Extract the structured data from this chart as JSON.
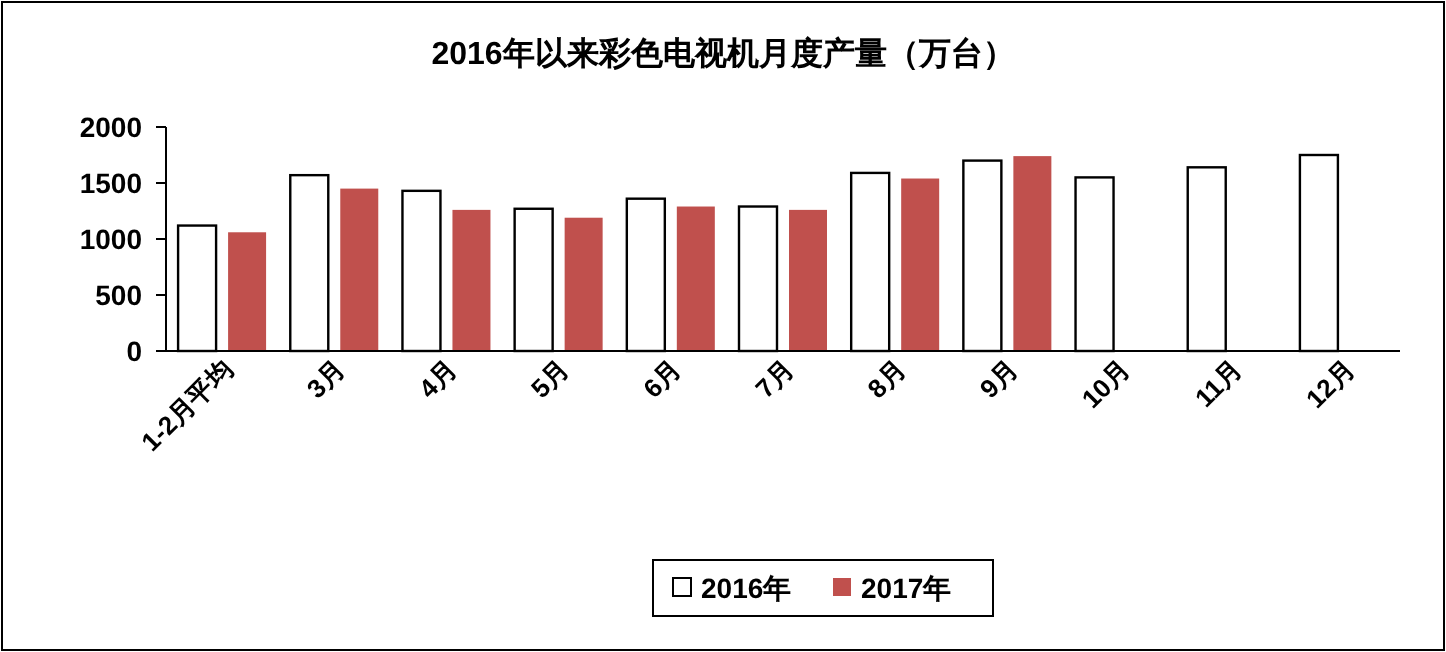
{
  "chart_data": {
    "type": "bar",
    "title": "2016年以来彩色电视机月度产量（万台）",
    "categories": [
      "1-2月平均",
      "3月",
      "4月",
      "5月",
      "6月",
      "7月",
      "8月",
      "9月",
      "10月",
      "11月",
      "12月"
    ],
    "series": [
      {
        "name": "2016年",
        "color": "#ffffff",
        "values": [
          1120,
          1570,
          1430,
          1270,
          1360,
          1290,
          1590,
          1700,
          1550,
          1640,
          1750
        ]
      },
      {
        "name": "2017年",
        "color": "#c0504d",
        "values": [
          1060,
          1450,
          1260,
          1190,
          1290,
          1260,
          1540,
          1740,
          null,
          null,
          null
        ]
      }
    ],
    "ylim": [
      0,
      2000
    ],
    "yticks": [
      0,
      500,
      1000,
      1500,
      2000
    ],
    "grid": false,
    "legend": "bottom"
  }
}
